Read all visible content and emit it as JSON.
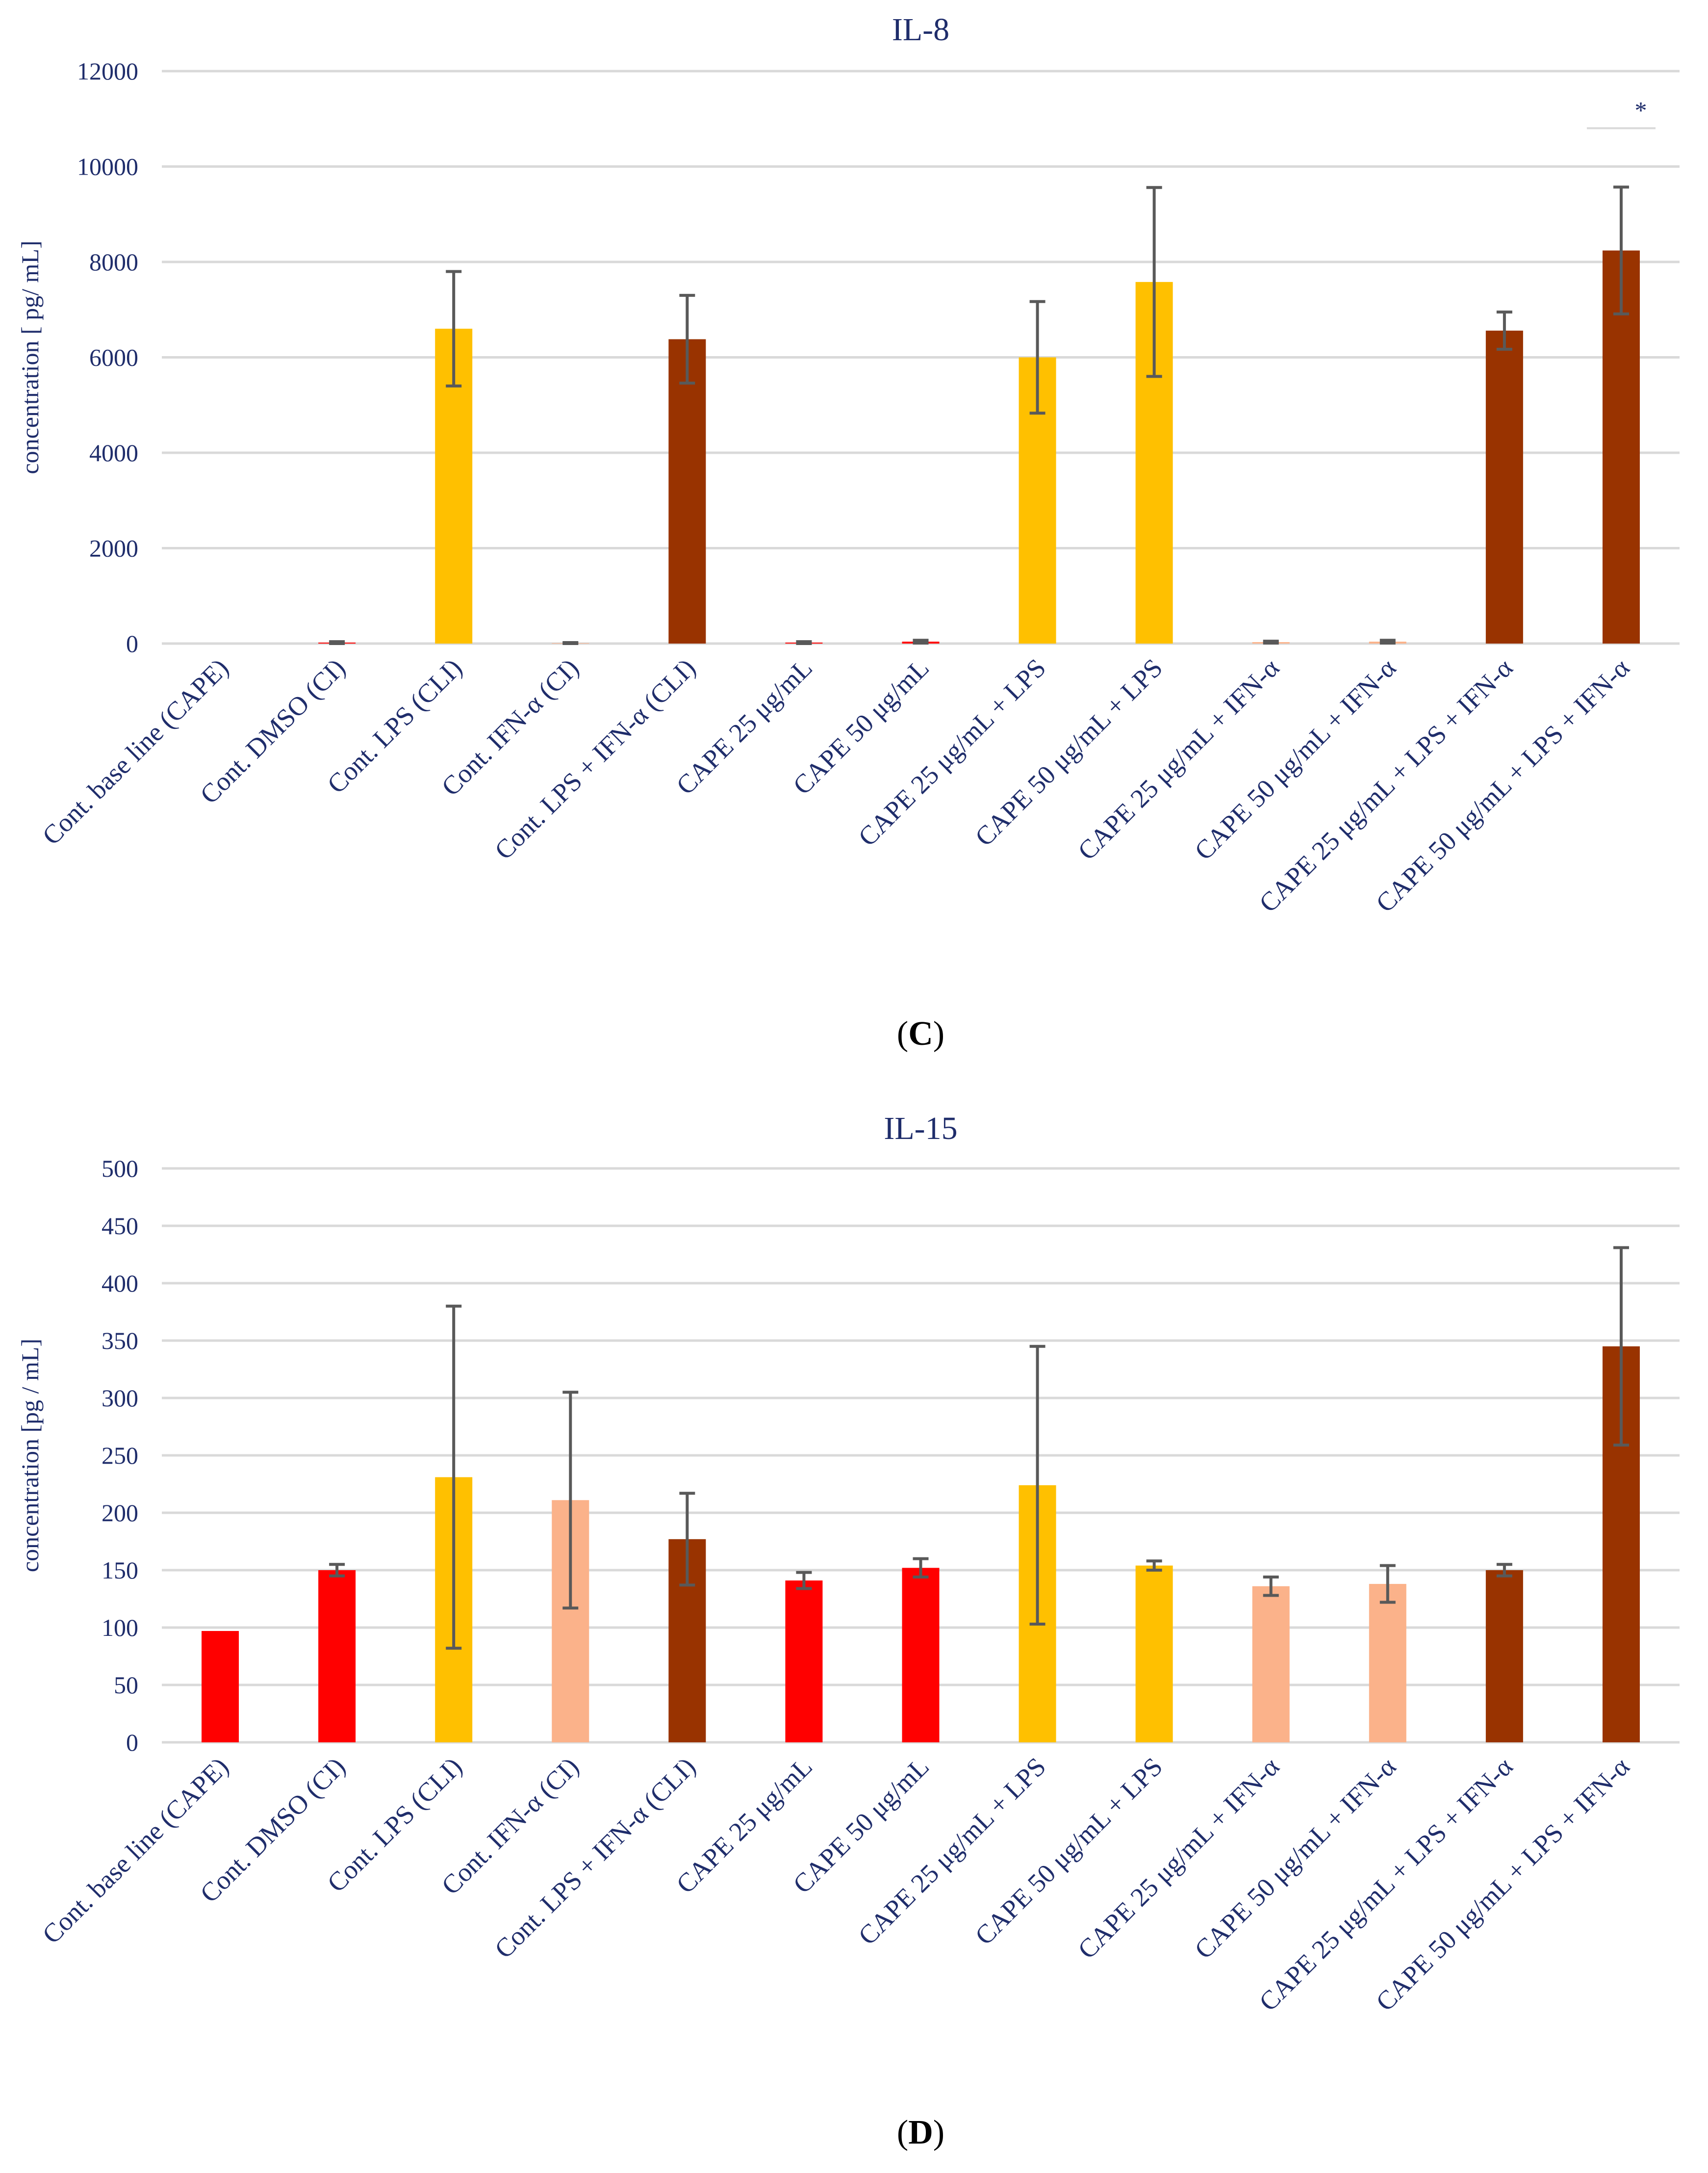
{
  "chart_data": [
    {
      "type": "bar",
      "title": "IL-8",
      "ylabel": "concentration [ pg/ mL]",
      "xlabel": "",
      "ylim": [
        0,
        12000
      ],
      "yticks": [
        0,
        2000,
        4000,
        6000,
        8000,
        10000,
        12000
      ],
      "panel_label": "(C)",
      "panel_letter": "C",
      "categories": [
        "Cont. base line (CAPE)",
        "Cont. DMSO (CI)",
        "Cont. LPS (CLI)",
        "Cont. IFN-α (CI)",
        "Cont. LPS + IFN-α (CLI)",
        "CAPE 25 μg/mL",
        "CAPE 50 μg/mL",
        "CAPE 25 μg/mL + LPS",
        "CAPE 50 μg/mL + LPS",
        "CAPE 25 μg/mL + IFN-α",
        "CAPE 50 μg/mL + IFN-α",
        "CAPE 25 μg/mL + LPS + IFN-α",
        "CAPE 50 μg/mL + LPS + IFN-α"
      ],
      "values": [
        0,
        20,
        6600,
        10,
        6380,
        20,
        40,
        6000,
        7580,
        30,
        40,
        6560,
        8240
      ],
      "errors": [
        0,
        20,
        1200,
        10,
        920,
        20,
        30,
        1170,
        1980,
        20,
        30,
        390,
        1330
      ],
      "colors": [
        "#ff0000",
        "#ff0000",
        "#ffc000",
        "#fbb28a",
        "#993300",
        "#ff0000",
        "#ff0000",
        "#ffc000",
        "#ffc000",
        "#fbb28a",
        "#fbb28a",
        "#993300",
        "#993300"
      ],
      "annotations": [
        {
          "category_index": 12,
          "text": "*"
        }
      ]
    },
    {
      "type": "bar",
      "title": "IL-15",
      "ylabel": "concentration [pg / mL]",
      "xlabel": "",
      "ylim": [
        0,
        500
      ],
      "yticks": [
        0,
        50,
        100,
        150,
        200,
        250,
        300,
        350,
        400,
        450,
        500
      ],
      "panel_label": "(D)",
      "panel_letter": "D",
      "categories": [
        "Cont. base line (CAPE)",
        "Cont. DMSO (CI)",
        "Cont. LPS (CLI)",
        "Cont. IFN-α (CI)",
        "Cont. LPS + IFN-α (CLI)",
        "CAPE 25 μg/mL",
        "CAPE 50 μg/mL",
        "CAPE 25 μg/mL + LPS",
        "CAPE 50 μg/mL + LPS",
        "CAPE 25 μg/mL + IFN-α",
        "CAPE 50 μg/mL + IFN-α",
        "CAPE 25 μg/mL + LPS + IFN-α",
        "CAPE 50 μg/mL + LPS + IFN-α"
      ],
      "values": [
        97,
        150,
        231,
        211,
        177,
        141,
        152,
        224,
        154,
        136,
        138,
        150,
        345
      ],
      "errors": [
        0,
        5,
        149,
        94,
        40,
        7,
        8,
        121,
        4,
        8,
        16,
        5,
        86
      ],
      "colors": [
        "#ff0000",
        "#ff0000",
        "#ffc000",
        "#fbb28a",
        "#993300",
        "#ff0000",
        "#ff0000",
        "#ffc000",
        "#ffc000",
        "#fbb28a",
        "#fbb28a",
        "#993300",
        "#993300"
      ],
      "annotations": []
    }
  ]
}
